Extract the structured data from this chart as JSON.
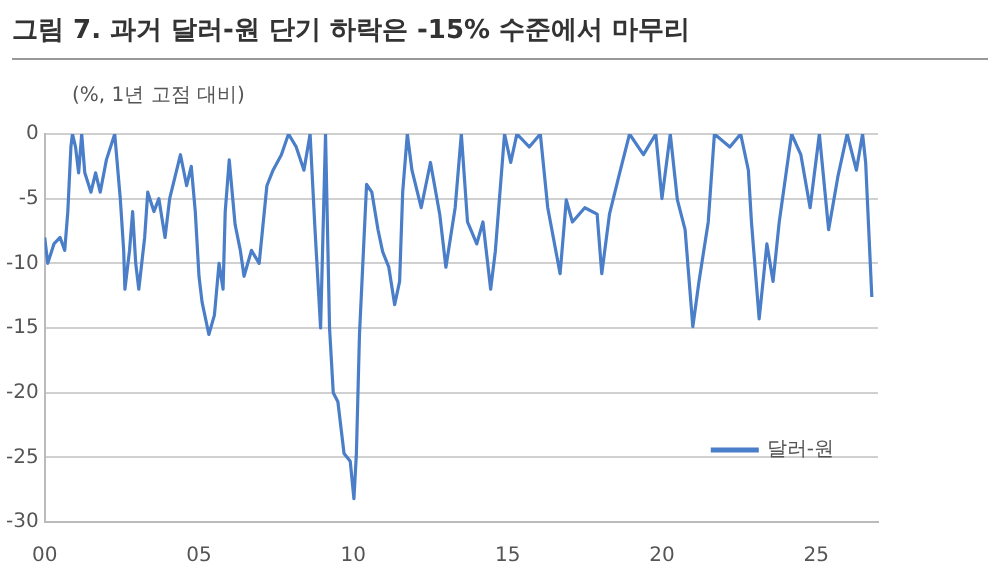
{
  "chart_data": {
    "type": "line",
    "title": "그림 7. 과거 달러-원 단기 하락은 -15% 수준에서 마무리",
    "ylabel": "(%, 1년 고점 대비)",
    "xlim": [
      0,
      27
    ],
    "xticks": [
      {
        "value": 0,
        "label": "00"
      },
      {
        "value": 5,
        "label": "05"
      },
      {
        "value": 10,
        "label": "10"
      },
      {
        "value": 15,
        "label": "15"
      },
      {
        "value": 20,
        "label": "20"
      },
      {
        "value": 25,
        "label": "25"
      }
    ],
    "ylim": [
      -30,
      0
    ],
    "yticks": [
      -30,
      -25,
      -20,
      -15,
      -10,
      -5,
      0
    ],
    "grid": "y",
    "legend": "bottom right",
    "marker": "none",
    "line_style": "solid",
    "series": [
      {
        "name": "달러-원",
        "color": "#4a7ec8",
        "x": [
          0.0,
          0.1,
          0.3,
          0.5,
          0.65,
          0.75,
          0.85,
          0.9,
          1.0,
          1.1,
          1.2,
          1.3,
          1.5,
          1.65,
          1.8,
          2.0,
          2.27,
          2.45,
          2.56,
          2.6,
          2.75,
          2.85,
          2.95,
          3.05,
          3.24,
          3.34,
          3.54,
          3.7,
          3.9,
          4.05,
          4.4,
          4.6,
          4.75,
          4.88,
          5.0,
          5.1,
          5.32,
          5.5,
          5.65,
          5.78,
          5.85,
          5.98,
          6.17,
          6.34,
          6.46,
          6.7,
          6.95,
          7.2,
          7.4,
          7.67,
          7.9,
          8.15,
          8.4,
          8.6,
          8.75,
          8.94,
          9.1,
          9.23,
          9.35,
          9.5,
          9.7,
          9.9,
          10.02,
          10.1,
          10.2,
          10.43,
          10.6,
          10.8,
          10.95,
          11.15,
          11.34,
          11.5,
          11.6,
          11.75,
          11.9,
          12.2,
          12.5,
          12.8,
          13.0,
          13.3,
          13.5,
          13.7,
          14.0,
          14.2,
          14.45,
          14.6,
          14.9,
          15.1,
          15.3,
          15.7,
          16.06,
          16.3,
          16.7,
          16.9,
          17.1,
          17.5,
          17.9,
          18.05,
          18.3,
          18.6,
          18.95,
          19.4,
          19.8,
          20.0,
          20.27,
          20.5,
          20.75,
          21.0,
          21.2,
          21.5,
          21.7,
          22.2,
          22.55,
          22.8,
          22.9,
          23.15,
          23.4,
          23.6,
          23.8,
          24.2,
          24.5,
          24.8,
          25.1,
          25.4,
          25.7,
          26.0,
          26.3,
          26.5,
          26.6,
          26.8
        ],
        "values": [
          -8,
          -10,
          -8.5,
          -8,
          -9,
          -6,
          -1,
          0,
          -1,
          -3,
          0,
          -3,
          -4.5,
          -3,
          -4.5,
          -2,
          0,
          -5,
          -9,
          -12,
          -9,
          -6,
          -10,
          -12,
          -8,
          -4.5,
          -6,
          -5,
          -8,
          -5,
          -1.6,
          -4,
          -2.5,
          -6,
          -11,
          -13,
          -15.5,
          -14,
          -10,
          -12,
          -6,
          -2,
          -7,
          -9,
          -11,
          -9,
          -10,
          -4,
          -2.8,
          -1.6,
          0,
          -1,
          -2.8,
          0,
          -7,
          -15,
          0,
          -15,
          -20,
          -20.7,
          -24.7,
          -25.3,
          -28.2,
          -24.7,
          -15.5,
          -3.9,
          -4.5,
          -7.4,
          -9.1,
          -10.3,
          -13.2,
          -11.4,
          -4.5,
          0,
          -2.8,
          -5.7,
          -2.2,
          -6.2,
          -10.3,
          -5.7,
          0,
          -6.8,
          -8.5,
          -6.8,
          -12,
          -9.1,
          0,
          -2.2,
          0,
          -1,
          0,
          -5.7,
          -10.8,
          -5.1,
          -6.8,
          -5.7,
          -6.2,
          -10.8,
          -6.2,
          -3.3,
          0,
          -1.6,
          0,
          -5,
          0,
          -5.1,
          -7.4,
          -14.9,
          -11.4,
          -6.8,
          0,
          -1,
          0,
          -2.8,
          -6.8,
          -14.3,
          -8.5,
          -11.4,
          -6.8,
          0,
          -1.6,
          -5.7,
          0,
          -7.4,
          -3.3,
          0,
          -2.8,
          0,
          -2.2,
          -12.6
        ]
      }
    ]
  }
}
